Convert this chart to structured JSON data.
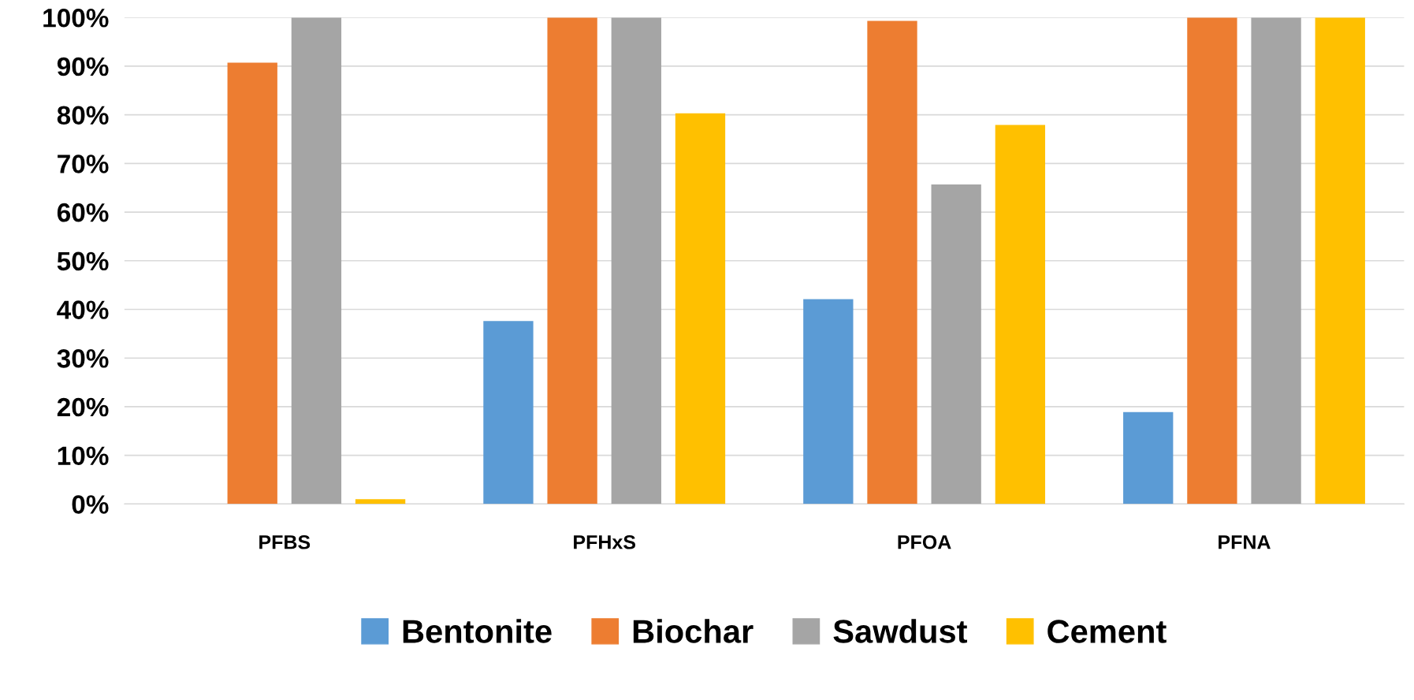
{
  "chart_data": {
    "type": "bar",
    "categories": [
      "PFBS",
      "PFHxS",
      "PFOA",
      "PFNA"
    ],
    "series": [
      {
        "name": "Bentonite",
        "color": "#5b9bd5",
        "values": [
          0,
          37.6,
          42.1,
          18.9
        ]
      },
      {
        "name": "Biochar",
        "color": "#ed7d31",
        "values": [
          90.7,
          100,
          99.3,
          100
        ]
      },
      {
        "name": "Sawdust",
        "color": "#a5a5a5",
        "values": [
          100,
          100,
          65.7,
          100
        ]
      },
      {
        "name": "Cement",
        "color": "#ffc000",
        "values": [
          1.0,
          80.3,
          77.9,
          100
        ]
      }
    ],
    "ylim": [
      0,
      100
    ],
    "yticks": [
      {
        "value": 0,
        "label": "0%"
      },
      {
        "value": 10,
        "label": "10%"
      },
      {
        "value": 20,
        "label": "20%"
      },
      {
        "value": 30,
        "label": "30%"
      },
      {
        "value": 40,
        "label": "40%"
      },
      {
        "value": 50,
        "label": "50%"
      },
      {
        "value": 60,
        "label": "60%"
      },
      {
        "value": 70,
        "label": "70%"
      },
      {
        "value": 80,
        "label": "80%"
      },
      {
        "value": 90,
        "label": "90%"
      },
      {
        "value": 100,
        "label": "100%"
      }
    ],
    "grid": "y",
    "legend": "bottom"
  }
}
